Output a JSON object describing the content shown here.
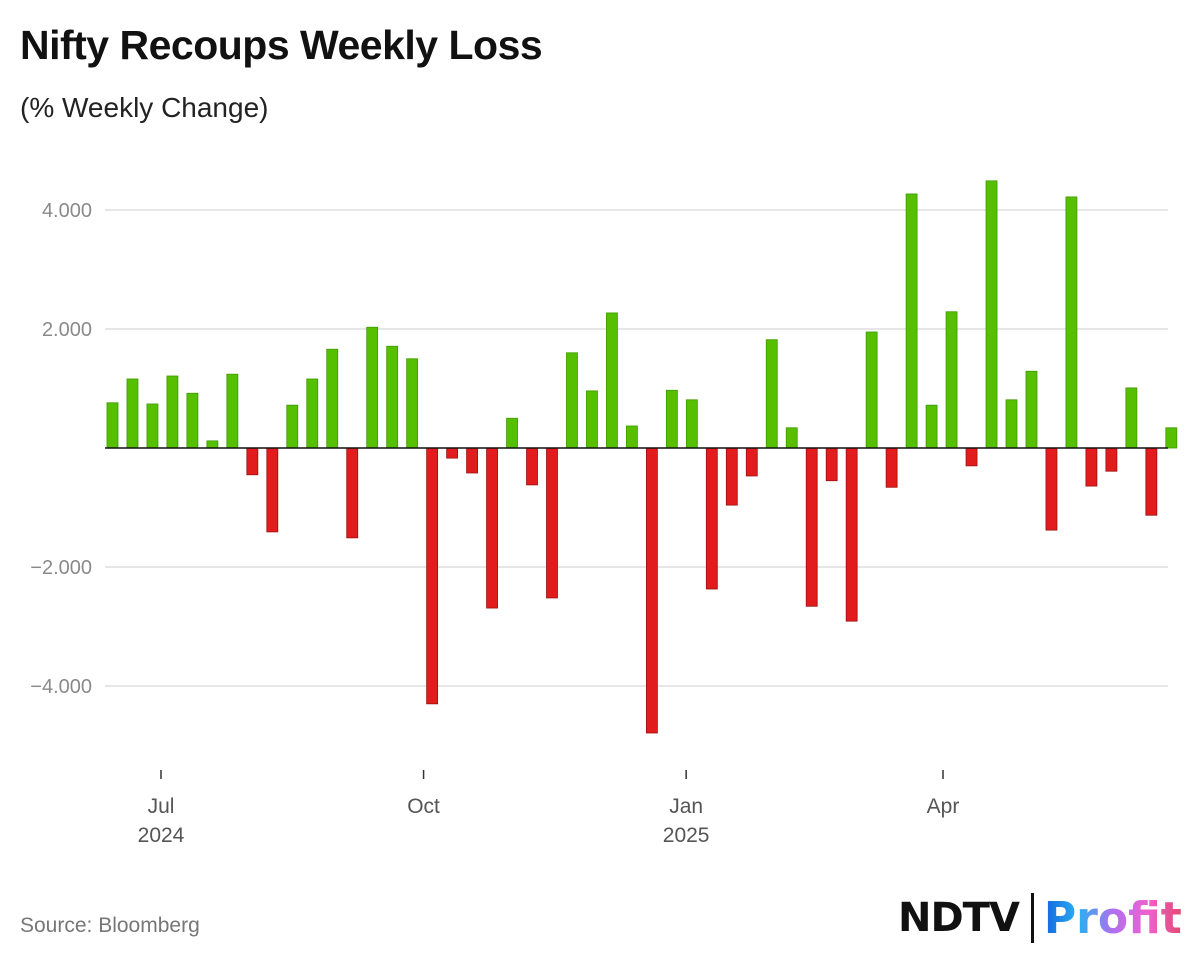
{
  "title": "Nifty Recoups Weekly Loss",
  "subtitle": "(% Weekly Change)",
  "source": "Source: Bloomberg",
  "logo": {
    "ndtv": "NDTV",
    "profit": "Profit"
  },
  "colors": {
    "positive": "#55bf00",
    "negative": "#e21c1c",
    "grid": "#dddddd",
    "axis": "#111111"
  },
  "chart_data": {
    "type": "bar",
    "title": "Nifty Recoups Weekly Loss",
    "subtitle": "(% Weekly Change)",
    "xlabel": "",
    "ylabel": "",
    "ylim": [
      -5000,
      4600
    ],
    "grid": true,
    "y_ticks": [
      {
        "value": 4000,
        "label": "4.000"
      },
      {
        "value": 2000,
        "label": "2.000"
      },
      {
        "value": -2000,
        "label": "-2.000"
      },
      {
        "value": -4000,
        "label": "-4.000"
      }
    ],
    "x_ticks": [
      {
        "date": "2024-07-01",
        "label": "Jul",
        "sublabel": "2024"
      },
      {
        "date": "2024-10-01",
        "label": "Oct",
        "sublabel": ""
      },
      {
        "date": "2025-01-01",
        "label": "Jan",
        "sublabel": "2025"
      },
      {
        "date": "2025-04-01",
        "label": "Apr",
        "sublabel": ""
      }
    ],
    "start_week": "2024-06-14",
    "values": [
      760,
      1160,
      740,
      1210,
      920,
      120,
      1240,
      -450,
      -1410,
      720,
      1160,
      1660,
      -1510,
      2030,
      1710,
      1500,
      -4300,
      -170,
      -420,
      -2690,
      500,
      -620,
      -2520,
      1600,
      960,
      2270,
      370,
      -4790,
      970,
      810,
      -2370,
      -960,
      -470,
      1820,
      340,
      -2660,
      -550,
      -2910,
      1950,
      -660,
      4270,
      720,
      2290,
      -300,
      4490,
      810,
      1290,
      -1380,
      4220,
      -640,
      -390,
      1010,
      -1130,
      340
    ]
  }
}
